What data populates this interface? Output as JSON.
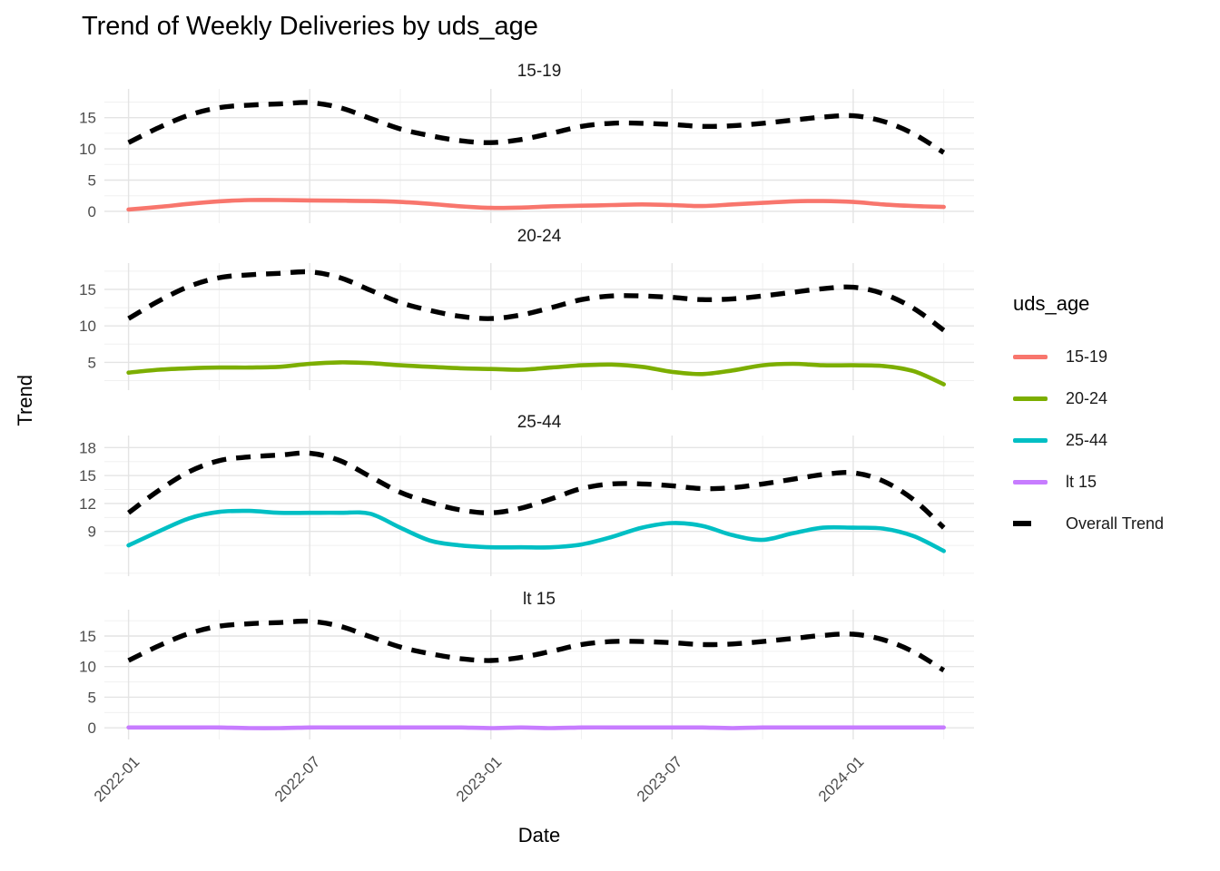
{
  "title": "Trend of Weekly Deliveries by uds_age",
  "axes": {
    "x_label": "Date",
    "y_label": "Trend"
  },
  "legend": {
    "title": "uds_age",
    "items": [
      {
        "label": "15-19",
        "color": "#F8766D",
        "dashed": false
      },
      {
        "label": "20-24",
        "color": "#7CAE00",
        "dashed": false
      },
      {
        "label": "25-44",
        "color": "#00BFC4",
        "dashed": false
      },
      {
        "label": "lt 15",
        "color": "#C77CFF",
        "dashed": false
      },
      {
        "label": "Overall Trend",
        "color": "#000000",
        "dashed": true
      }
    ]
  },
  "colors": {
    "background": "#FFFFFF",
    "grid_major": "#E4E4E4",
    "grid_minor": "#F0F0F0",
    "axis_text": "#4D4D4D",
    "overall_trend": "#000000"
  },
  "chart_data": {
    "type": "line",
    "title": "Trend of Weekly Deliveries by uds_age",
    "xlabel": "Date",
    "ylabel": "Trend",
    "x": [
      "2022-01",
      "2022-02",
      "2022-03",
      "2022-04",
      "2022-05",
      "2022-06",
      "2022-07",
      "2022-08",
      "2022-09",
      "2022-10",
      "2022-11",
      "2022-12",
      "2023-01",
      "2023-02",
      "2023-03",
      "2023-04",
      "2023-05",
      "2023-06",
      "2023-07",
      "2023-08",
      "2023-09",
      "2023-10",
      "2023-11",
      "2023-12",
      "2024-01",
      "2024-02",
      "2024-03",
      "2024-04"
    ],
    "x_axis": {
      "tick_labels": [
        "2022-01",
        "2022-07",
        "2023-01",
        "2023-07",
        "2024-01"
      ],
      "tick_month_index": [
        0,
        6,
        12,
        18,
        24
      ],
      "minor_month_index": [
        3,
        9,
        15,
        21,
        27
      ],
      "xlim_months": [
        -0.8,
        28.0
      ]
    },
    "series": [
      {
        "name": "15-19",
        "color": "#F8766D",
        "dashed": false,
        "values": [
          0.3,
          0.7,
          1.2,
          1.6,
          1.8,
          1.8,
          1.75,
          1.7,
          1.65,
          1.5,
          1.2,
          0.8,
          0.55,
          0.6,
          0.8,
          0.9,
          1.0,
          1.1,
          1.0,
          0.85,
          1.1,
          1.35,
          1.6,
          1.65,
          1.5,
          1.1,
          0.85,
          0.7
        ]
      },
      {
        "name": "20-24",
        "color": "#7CAE00",
        "dashed": false,
        "values": [
          3.6,
          4.0,
          4.2,
          4.3,
          4.3,
          4.4,
          4.8,
          5.0,
          4.9,
          4.6,
          4.4,
          4.2,
          4.1,
          4.0,
          4.3,
          4.6,
          4.7,
          4.4,
          3.7,
          3.4,
          3.9,
          4.6,
          4.8,
          4.6,
          4.6,
          4.5,
          3.8,
          2.0
        ]
      },
      {
        "name": "25-44",
        "color": "#00BFC4",
        "dashed": false,
        "values": [
          7.5,
          9.0,
          10.4,
          11.1,
          11.2,
          11.0,
          11.0,
          11.0,
          10.9,
          9.4,
          8.0,
          7.5,
          7.3,
          7.3,
          7.3,
          7.6,
          8.4,
          9.4,
          9.9,
          9.6,
          8.6,
          8.1,
          8.8,
          9.4,
          9.4,
          9.3,
          8.5,
          6.9
        ]
      },
      {
        "name": "lt 15",
        "color": "#C77CFF",
        "dashed": false,
        "values": [
          0.05,
          0.05,
          0.05,
          0.05,
          -0.05,
          -0.05,
          0.05,
          0.05,
          0.05,
          0.05,
          0.05,
          0.05,
          -0.05,
          0.05,
          -0.05,
          0.05,
          0.05,
          0.05,
          0.05,
          0.05,
          -0.05,
          0.05,
          0.05,
          0.05,
          0.05,
          0.05,
          0.05,
          0.05
        ]
      },
      {
        "name": "Overall Trend",
        "color": "#000000",
        "dashed": true,
        "values": [
          11.0,
          13.4,
          15.4,
          16.6,
          17.0,
          17.2,
          17.4,
          16.6,
          14.9,
          13.2,
          12.1,
          11.3,
          11.0,
          11.5,
          12.5,
          13.6,
          14.1,
          14.1,
          13.9,
          13.6,
          13.7,
          14.1,
          14.6,
          15.1,
          15.3,
          14.4,
          12.4,
          9.4
        ]
      }
    ],
    "facets": [
      {
        "label": "15-19",
        "series": "15-19",
        "ylim": [
          -1.9,
          19.6
        ],
        "yticks": [
          0,
          5,
          10,
          15
        ],
        "yminor": [
          2.5,
          7.5,
          12.5,
          17.5
        ]
      },
      {
        "label": "20-24",
        "series": "20-24",
        "ylim": [
          1.2,
          18.6
        ],
        "yticks": [
          5,
          10,
          15
        ],
        "yminor": [
          2.5,
          7.5,
          12.5,
          17.5
        ]
      },
      {
        "label": "25-44",
        "series": "25-44",
        "ylim": [
          4.2,
          19.3
        ],
        "yticks": [
          9,
          12,
          15,
          18
        ],
        "yminor": [
          4.5,
          7.5,
          10.5,
          13.5,
          16.5
        ]
      },
      {
        "label": "lt 15",
        "series": "lt 15",
        "ylim": [
          -1.9,
          19.3
        ],
        "yticks": [
          0,
          5,
          10,
          15
        ],
        "yminor": [
          2.5,
          7.5,
          12.5,
          17.5
        ]
      }
    ],
    "legend_position": "right",
    "grid": true
  }
}
